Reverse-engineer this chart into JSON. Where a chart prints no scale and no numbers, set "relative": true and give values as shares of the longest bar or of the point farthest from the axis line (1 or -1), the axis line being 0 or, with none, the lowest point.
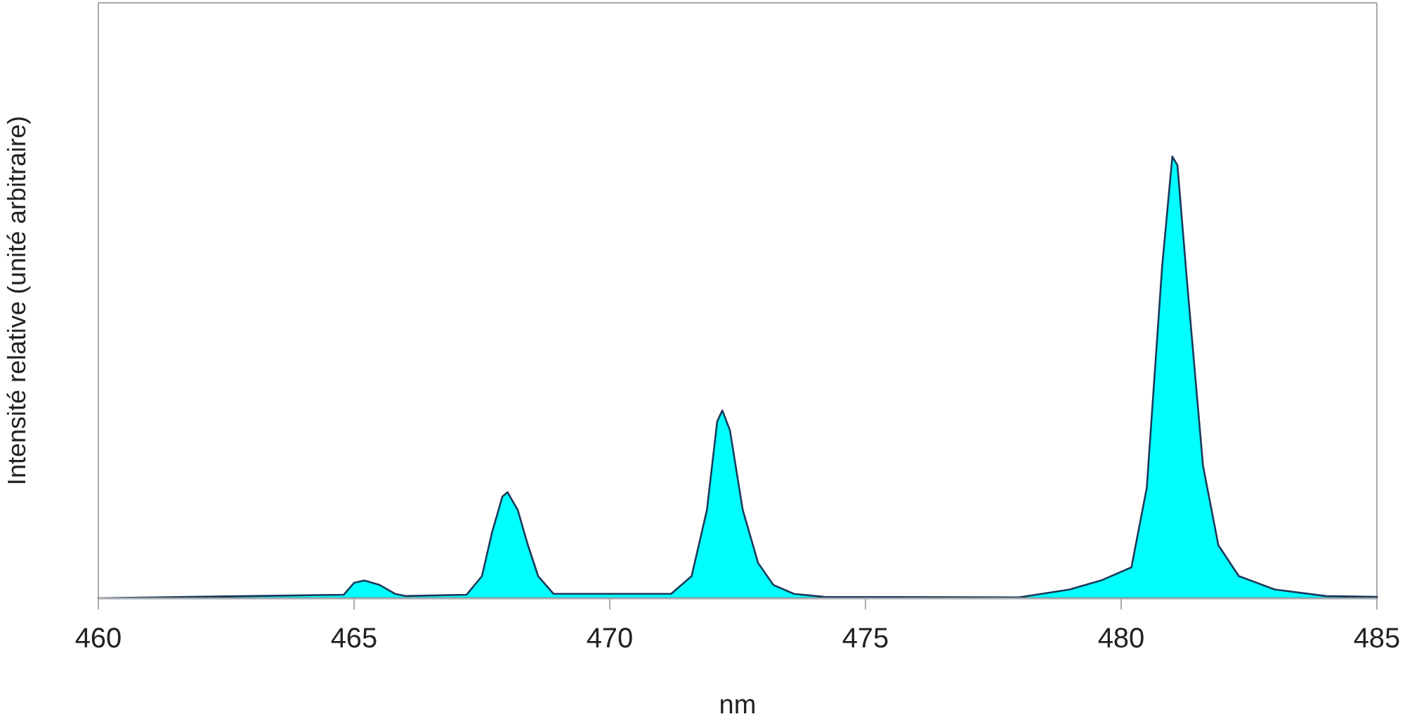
{
  "chart_data": {
    "type": "area",
    "xlabel": "nm",
    "ylabel": "Intensité relative (unité arbitraire)",
    "relative": true,
    "xlim": [
      460,
      485
    ],
    "xticks": [
      460,
      465,
      470,
      475,
      480,
      485
    ],
    "series": [
      {
        "color": "#00ffff",
        "x": [
          460,
          463,
          464.8,
          465.0,
          465.2,
          465.5,
          465.8,
          466,
          467.2,
          467.5,
          467.7,
          467.9,
          468.0,
          468.2,
          468.4,
          468.6,
          468.9,
          471.2,
          471.6,
          471.9,
          472.1,
          472.2,
          472.35,
          472.6,
          472.9,
          473.2,
          473.6,
          474.2,
          478,
          479,
          479.6,
          480.2,
          480.5,
          480.8,
          481.0,
          481.1,
          481.3,
          481.6,
          481.9,
          482.3,
          483,
          484,
          485
        ],
        "values": [
          0,
          0.005,
          0.008,
          0.035,
          0.04,
          0.03,
          0.01,
          0.005,
          0.008,
          0.05,
          0.15,
          0.23,
          0.24,
          0.2,
          0.12,
          0.05,
          0.01,
          0.01,
          0.05,
          0.2,
          0.4,
          0.425,
          0.38,
          0.2,
          0.08,
          0.03,
          0.01,
          0.003,
          0.002,
          0.02,
          0.04,
          0.07,
          0.25,
          0.75,
          1,
          0.98,
          0.7,
          0.3,
          0.12,
          0.05,
          0.02,
          0.005,
          0.003
        ]
      }
    ]
  }
}
